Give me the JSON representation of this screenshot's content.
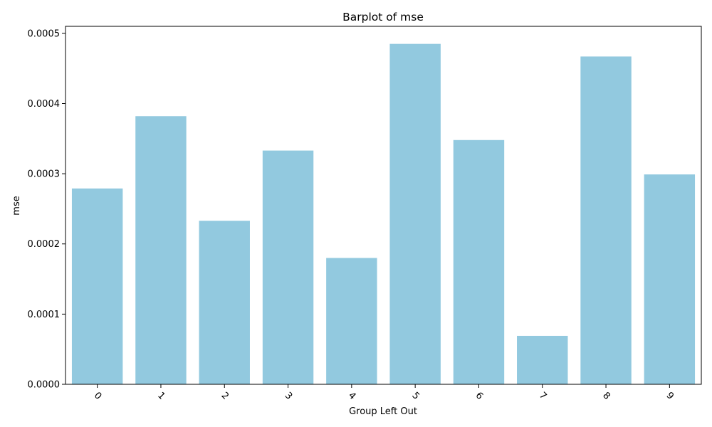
{
  "chart_data": {
    "type": "bar",
    "title": "Barplot of mse",
    "xlabel": "Group Left Out",
    "ylabel": "mse",
    "categories": [
      "0",
      "1",
      "2",
      "3",
      "4",
      "5",
      "6",
      "7",
      "8",
      "9"
    ],
    "values": [
      0.000279,
      0.000382,
      0.000233,
      0.000333,
      0.00018,
      0.000485,
      0.000348,
      6.9e-05,
      0.000467,
      0.000299
    ],
    "ylim": [
      0,
      0.00051
    ],
    "yticks": [
      0.0,
      0.0001,
      0.0002,
      0.0003,
      0.0004,
      0.0005
    ],
    "ytick_labels": [
      "0.0000",
      "0.0001",
      "0.0002",
      "0.0003",
      "0.0004",
      "0.0005"
    ],
    "xtick_rotation_deg": 45,
    "bar_color": "#92c9df",
    "grid": false,
    "legend": "none"
  }
}
